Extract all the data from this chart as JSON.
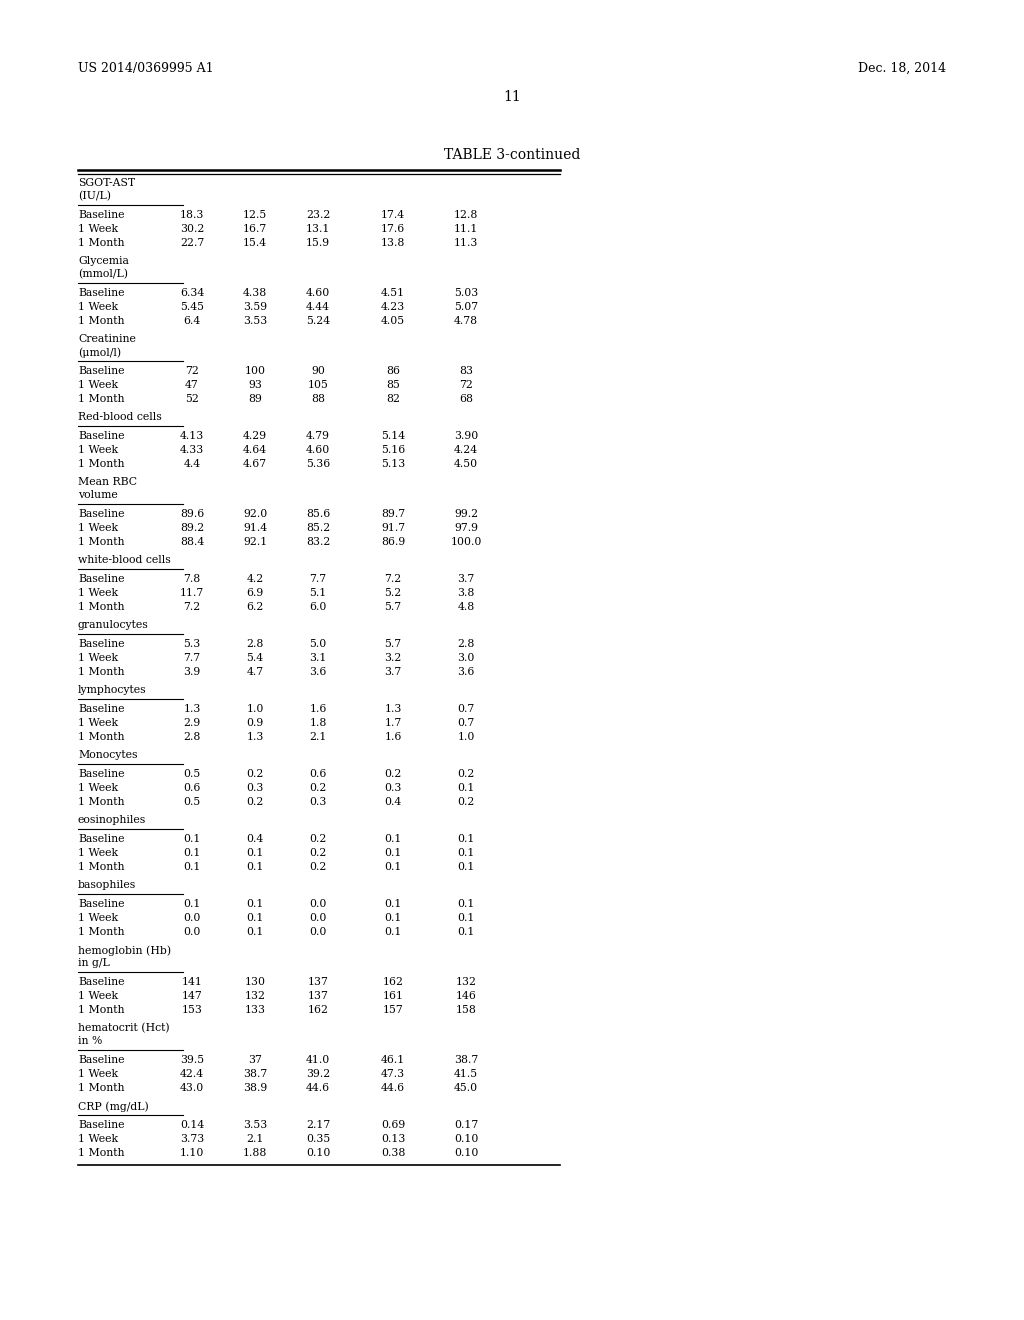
{
  "header_left": "US 2014/0369995 A1",
  "header_right": "Dec. 18, 2014",
  "page_number": "11",
  "table_title": "TABLE 3-continued",
  "background_color": "#ffffff",
  "text_color": "#000000",
  "sections": [
    {
      "category": [
        "SGOT-AST",
        "(IU/L)"
      ],
      "rows": [
        {
          "label": "Baseline",
          "values": [
            "18.3",
            "12.5",
            "23.2",
            "17.4",
            "12.8"
          ]
        },
        {
          "label": "1 Week",
          "values": [
            "30.2",
            "16.7",
            "13.1",
            "17.6",
            "11.1"
          ]
        },
        {
          "label": "1 Month",
          "values": [
            "22.7",
            "15.4",
            "15.9",
            "13.8",
            "11.3"
          ]
        }
      ]
    },
    {
      "category": [
        "Glycemia",
        "(mmol/L)"
      ],
      "rows": [
        {
          "label": "Baseline",
          "values": [
            "6.34",
            "4.38",
            "4.60",
            "4.51",
            "5.03"
          ]
        },
        {
          "label": "1 Week",
          "values": [
            "5.45",
            "3.59",
            "4.44",
            "4.23",
            "5.07"
          ]
        },
        {
          "label": "1 Month",
          "values": [
            "6.4",
            "3.53",
            "5.24",
            "4.05",
            "4.78"
          ]
        }
      ]
    },
    {
      "category": [
        "Creatinine",
        "(μmol/l)"
      ],
      "rows": [
        {
          "label": "Baseline",
          "values": [
            "72",
            "100",
            "90",
            "86",
            "83"
          ]
        },
        {
          "label": "1 Week",
          "values": [
            "47",
            "93",
            "105",
            "85",
            "72"
          ]
        },
        {
          "label": "1 Month",
          "values": [
            "52",
            "89",
            "88",
            "82",
            "68"
          ]
        }
      ]
    },
    {
      "category": [
        "Red-blood cells"
      ],
      "rows": [
        {
          "label": "Baseline",
          "values": [
            "4.13",
            "4.29",
            "4.79",
            "5.14",
            "3.90"
          ]
        },
        {
          "label": "1 Week",
          "values": [
            "4.33",
            "4.64",
            "4.60",
            "5.16",
            "4.24"
          ]
        },
        {
          "label": "1 Month",
          "values": [
            "4.4",
            "4.67",
            "5.36",
            "5.13",
            "4.50"
          ]
        }
      ]
    },
    {
      "category": [
        "Mean RBC",
        "volume"
      ],
      "rows": [
        {
          "label": "Baseline",
          "values": [
            "89.6",
            "92.0",
            "85.6",
            "89.7",
            "99.2"
          ]
        },
        {
          "label": "1 Week",
          "values": [
            "89.2",
            "91.4",
            "85.2",
            "91.7",
            "97.9"
          ]
        },
        {
          "label": "1 Month",
          "values": [
            "88.4",
            "92.1",
            "83.2",
            "86.9",
            "100.0"
          ]
        }
      ]
    },
    {
      "category": [
        "white-blood cells"
      ],
      "rows": [
        {
          "label": "Baseline",
          "values": [
            "7.8",
            "4.2",
            "7.7",
            "7.2",
            "3.7"
          ]
        },
        {
          "label": "1 Week",
          "values": [
            "11.7",
            "6.9",
            "5.1",
            "5.2",
            "3.8"
          ]
        },
        {
          "label": "1 Month",
          "values": [
            "7.2",
            "6.2",
            "6.0",
            "5.7",
            "4.8"
          ]
        }
      ]
    },
    {
      "category": [
        "granulocytes"
      ],
      "rows": [
        {
          "label": "Baseline",
          "values": [
            "5.3",
            "2.8",
            "5.0",
            "5.7",
            "2.8"
          ]
        },
        {
          "label": "1 Week",
          "values": [
            "7.7",
            "5.4",
            "3.1",
            "3.2",
            "3.0"
          ]
        },
        {
          "label": "1 Month",
          "values": [
            "3.9",
            "4.7",
            "3.6",
            "3.7",
            "3.6"
          ]
        }
      ]
    },
    {
      "category": [
        "lymphocytes"
      ],
      "rows": [
        {
          "label": "Baseline",
          "values": [
            "1.3",
            "1.0",
            "1.6",
            "1.3",
            "0.7"
          ]
        },
        {
          "label": "1 Week",
          "values": [
            "2.9",
            "0.9",
            "1.8",
            "1.7",
            "0.7"
          ]
        },
        {
          "label": "1 Month",
          "values": [
            "2.8",
            "1.3",
            "2.1",
            "1.6",
            "1.0"
          ]
        }
      ]
    },
    {
      "category": [
        "Monocytes"
      ],
      "rows": [
        {
          "label": "Baseline",
          "values": [
            "0.5",
            "0.2",
            "0.6",
            "0.2",
            "0.2"
          ]
        },
        {
          "label": "1 Week",
          "values": [
            "0.6",
            "0.3",
            "0.2",
            "0.3",
            "0.1"
          ]
        },
        {
          "label": "1 Month",
          "values": [
            "0.5",
            "0.2",
            "0.3",
            "0.4",
            "0.2"
          ]
        }
      ]
    },
    {
      "category": [
        "eosinophiles"
      ],
      "rows": [
        {
          "label": "Baseline",
          "values": [
            "0.1",
            "0.4",
            "0.2",
            "0.1",
            "0.1"
          ]
        },
        {
          "label": "1 Week",
          "values": [
            "0.1",
            "0.1",
            "0.2",
            "0.1",
            "0.1"
          ]
        },
        {
          "label": "1 Month",
          "values": [
            "0.1",
            "0.1",
            "0.2",
            "0.1",
            "0.1"
          ]
        }
      ]
    },
    {
      "category": [
        "basophiles"
      ],
      "rows": [
        {
          "label": "Baseline",
          "values": [
            "0.1",
            "0.1",
            "0.0",
            "0.1",
            "0.1"
          ]
        },
        {
          "label": "1 Week",
          "values": [
            "0.0",
            "0.1",
            "0.0",
            "0.1",
            "0.1"
          ]
        },
        {
          "label": "1 Month",
          "values": [
            "0.0",
            "0.1",
            "0.0",
            "0.1",
            "0.1"
          ]
        }
      ]
    },
    {
      "category": [
        "hemoglobin (Hb)",
        "in g/L"
      ],
      "rows": [
        {
          "label": "Baseline",
          "values": [
            "141",
            "130",
            "137",
            "162",
            "132"
          ]
        },
        {
          "label": "1 Week",
          "values": [
            "147",
            "132",
            "137",
            "161",
            "146"
          ]
        },
        {
          "label": "1 Month",
          "values": [
            "153",
            "133",
            "162",
            "157",
            "158"
          ]
        }
      ]
    },
    {
      "category": [
        "hematocrit (Hct)",
        "in %"
      ],
      "rows": [
        {
          "label": "Baseline",
          "values": [
            "39.5",
            "37",
            "41.0",
            "46.1",
            "38.7"
          ]
        },
        {
          "label": "1 Week",
          "values": [
            "42.4",
            "38.7",
            "39.2",
            "47.3",
            "41.5"
          ]
        },
        {
          "label": "1 Month",
          "values": [
            "43.0",
            "38.9",
            "44.6",
            "44.6",
            "45.0"
          ]
        }
      ]
    },
    {
      "category": [
        "CRP (mg/dL)"
      ],
      "rows": [
        {
          "label": "Baseline",
          "values": [
            "0.14",
            "3.53",
            "2.17",
            "0.69",
            "0.17"
          ]
        },
        {
          "label": "1 Week",
          "values": [
            "3.73",
            "2.1",
            "0.35",
            "0.13",
            "0.10"
          ]
        },
        {
          "label": "1 Month",
          "values": [
            "1.10",
            "1.88",
            "0.10",
            "0.38",
            "0.10"
          ]
        }
      ]
    }
  ]
}
